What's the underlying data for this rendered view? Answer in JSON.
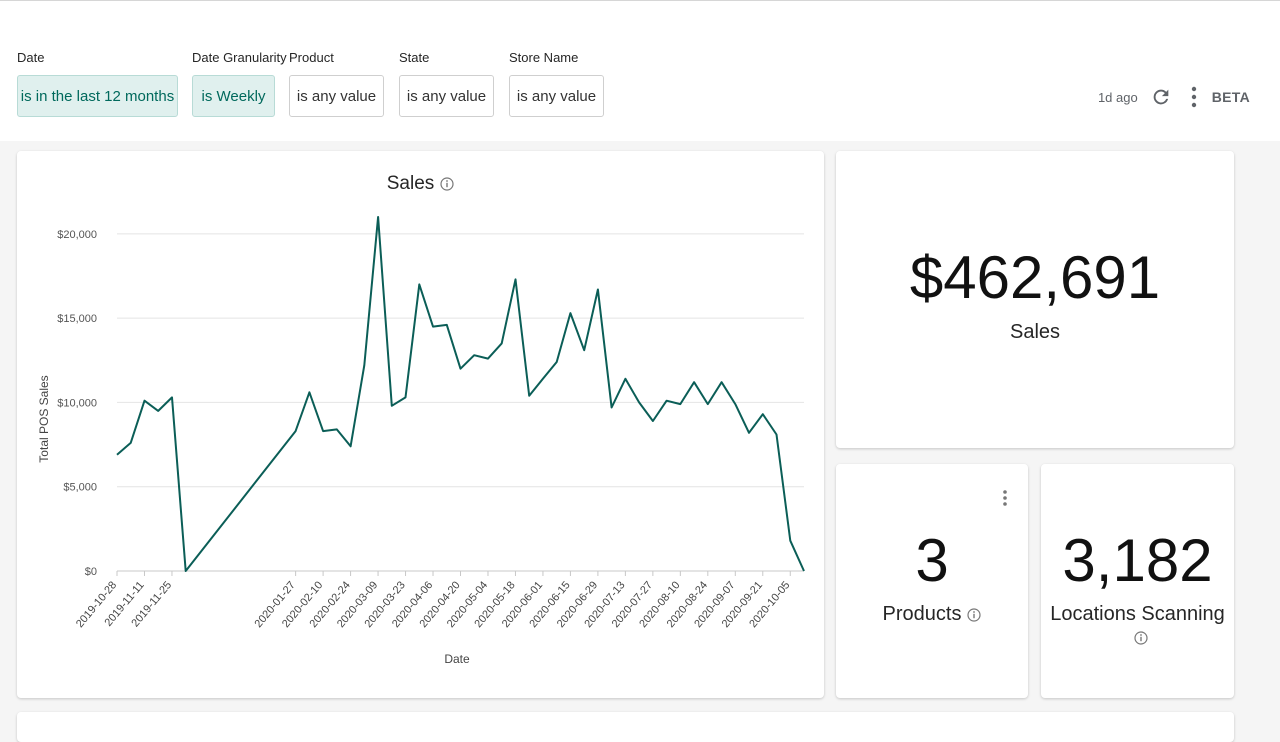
{
  "filters": [
    {
      "label": "Date",
      "value": "is in the last 12 months",
      "active": true
    },
    {
      "label": "Date Granularity",
      "value": "is Weekly",
      "active": true
    },
    {
      "label": "Product",
      "value": "is any value",
      "active": false
    },
    {
      "label": "State",
      "value": "is any value",
      "active": false
    },
    {
      "label": "Store Name",
      "value": "is any value",
      "active": false
    }
  ],
  "header": {
    "updated": "1d ago",
    "beta": "BETA",
    "refresh_icon": "refresh-icon",
    "menu_icon": "more-vert-icon"
  },
  "colors": {
    "line": "#0b5e57",
    "accent_bg": "#e0f0ee",
    "accent_text": "#00695c"
  },
  "sales_chart": {
    "title": "Sales",
    "ylabel": "Total POS Sales",
    "xlabel": "Date",
    "ytick_labels": [
      "$0",
      "$5,000",
      "$10,000",
      "$15,000",
      "$20,000"
    ],
    "xtick_labels": [
      "2019-10-28",
      "2019-11-11",
      "2019-11-25",
      "2020-01-27",
      "2020-02-10",
      "2020-02-24",
      "2020-03-09",
      "2020-03-23",
      "2020-04-06",
      "2020-04-20",
      "2020-05-04",
      "2020-05-18",
      "2020-06-01",
      "2020-06-15",
      "2020-06-29",
      "2020-07-13",
      "2020-07-27",
      "2020-08-10",
      "2020-08-24",
      "2020-09-07",
      "2020-09-21",
      "2020-10-05"
    ]
  },
  "chart_data": {
    "type": "line",
    "xlabel": "Date",
    "ylabel": "Total POS Sales",
    "ylim": [
      0,
      21000
    ],
    "grid": true,
    "x": [
      "2019-10-28",
      "2019-11-04",
      "2019-11-11",
      "2019-11-18",
      "2019-11-25",
      "2019-12-02",
      "2020-01-27",
      "2020-02-03",
      "2020-02-10",
      "2020-02-17",
      "2020-02-24",
      "2020-03-02",
      "2020-03-09",
      "2020-03-16",
      "2020-03-23",
      "2020-03-30",
      "2020-04-06",
      "2020-04-13",
      "2020-04-20",
      "2020-04-27",
      "2020-05-04",
      "2020-05-11",
      "2020-05-18",
      "2020-05-25",
      "2020-06-01",
      "2020-06-08",
      "2020-06-15",
      "2020-06-22",
      "2020-06-29",
      "2020-07-06",
      "2020-07-13",
      "2020-07-20",
      "2020-07-27",
      "2020-08-03",
      "2020-08-10",
      "2020-08-17",
      "2020-08-24",
      "2020-08-31",
      "2020-09-07",
      "2020-09-14",
      "2020-09-21",
      "2020-09-28",
      "2020-10-05",
      "2020-10-12"
    ],
    "series": [
      {
        "values": [
          6900,
          7600,
          10100,
          9500,
          10300,
          0,
          8300,
          10600,
          8300,
          8400,
          7400,
          12200,
          21000,
          9800,
          10300,
          17000,
          14500,
          14600,
          12000,
          12800,
          12600,
          13500,
          17300,
          10400,
          11400,
          12400,
          15300,
          13100,
          16700,
          9700,
          11400,
          10000,
          8900,
          10100,
          9900,
          11200,
          9900,
          11200,
          9900,
          8200,
          9300,
          8100,
          1800,
          0
        ]
      }
    ]
  },
  "kpis": {
    "sales": {
      "value": "$462,691",
      "label": "Sales"
    },
    "products": {
      "value": "3",
      "label": "Products"
    },
    "locations": {
      "value": "3,182",
      "label": "Locations Scanning"
    }
  }
}
